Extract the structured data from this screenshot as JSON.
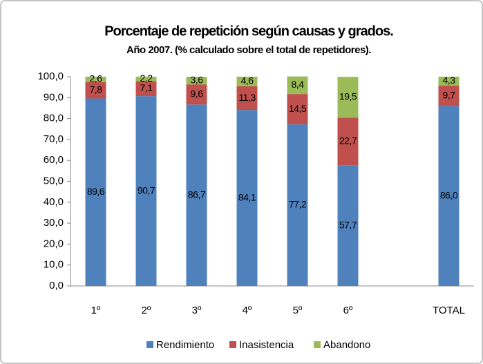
{
  "chart_data": {
    "type": "stacked_bar",
    "title": "Porcentaje de repetición según causas y grados.",
    "subtitle": "Año 2007. (% calculado sobre el total de repetidores).",
    "categories": [
      "1º",
      "2º",
      "3º",
      "4º",
      "5º",
      "6º",
      null,
      "TOTAL"
    ],
    "series": [
      {
        "name": "Rendimiento",
        "color": "#4f81bd",
        "values": [
          89.6,
          90.7,
          86.7,
          84.1,
          77.2,
          57.7,
          null,
          86.0
        ],
        "value_labels": [
          "89,6",
          "90,7",
          "86,7",
          "84,1",
          "77,2",
          "57,7",
          null,
          "86,0"
        ]
      },
      {
        "name": "Inasistencia",
        "color": "#c0504d",
        "values": [
          7.8,
          7.1,
          9.6,
          11.3,
          14.5,
          22.7,
          null,
          9.7
        ],
        "value_labels": [
          "7,8",
          "7,1",
          "9,6",
          "11,3",
          "14,5",
          "22,7",
          null,
          "9,7"
        ]
      },
      {
        "name": "Abandono",
        "color": "#9bbb59",
        "values": [
          2.6,
          2.2,
          3.6,
          4.6,
          8.4,
          19.5,
          null,
          4.3
        ],
        "value_labels": [
          "2,6",
          "2,2",
          "3,6",
          "4,6",
          "8,4",
          "19,5",
          null,
          "4,3"
        ]
      }
    ],
    "ylim": [
      0,
      100
    ],
    "yticks": [
      {
        "value": 0,
        "label": "0,0"
      },
      {
        "value": 10,
        "label": "10,0"
      },
      {
        "value": 20,
        "label": "20,0"
      },
      {
        "value": 30,
        "label": "30,0"
      },
      {
        "value": 40,
        "label": "40,0"
      },
      {
        "value": 50,
        "label": "50,0"
      },
      {
        "value": 60,
        "label": "60,0"
      },
      {
        "value": 70,
        "label": "70,0"
      },
      {
        "value": 80,
        "label": "80,0"
      },
      {
        "value": 90,
        "label": "90,0"
      },
      {
        "value": 100,
        "label": "100,0"
      }
    ],
    "grid": false,
    "legend": "bottom"
  }
}
